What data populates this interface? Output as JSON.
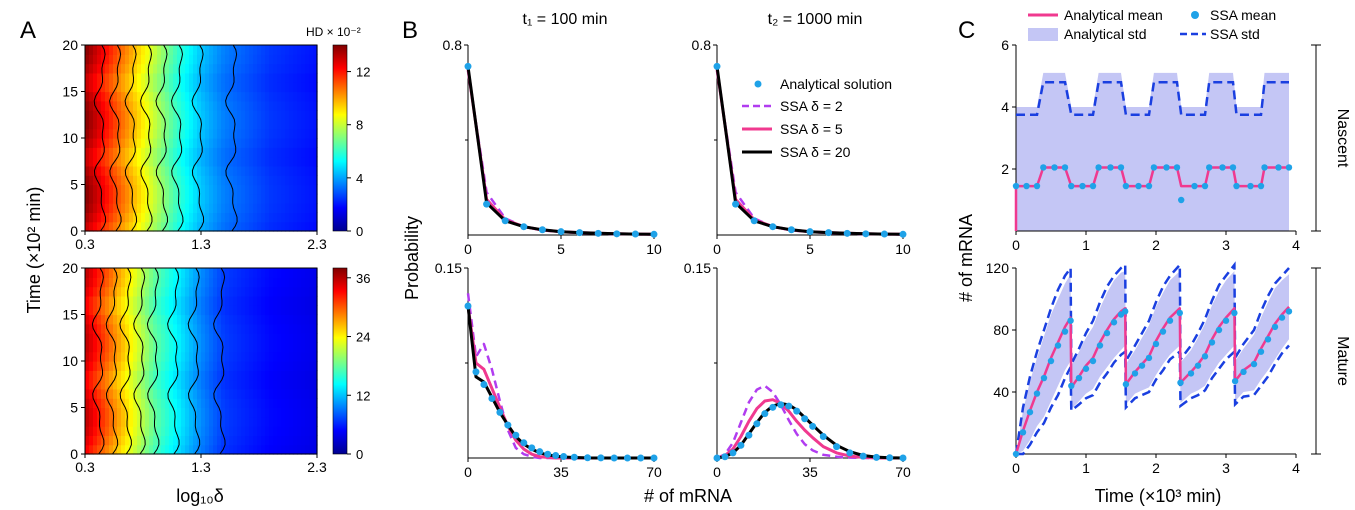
{
  "panel_labels": {
    "a": "A",
    "b": "B",
    "c": "C"
  },
  "chart_data": [
    {
      "id": "A-top",
      "type": "heatmap",
      "title": "",
      "xlabel": "log₁₀δ",
      "ylabel": "Time (×10² min)",
      "xlim": [
        0.3,
        2.3
      ],
      "ylim": [
        0,
        20
      ],
      "xticks": [
        "0.3",
        "1.3",
        "2.3"
      ],
      "yticks": [
        "0",
        "5",
        "10",
        "15",
        "20"
      ],
      "colorbar": {
        "label": "HD × 10⁻²",
        "min": 0,
        "max": 14,
        "ticks": [
          "0",
          "4",
          "8",
          "12"
        ]
      },
      "hd_at_log_delta": {
        "x": [
          0.3,
          0.5,
          0.7,
          0.9,
          1.1,
          1.3,
          1.5,
          1.9,
          2.3
        ],
        "values": [
          14,
          12,
          10,
          8,
          6,
          4.5,
          3.5,
          2.5,
          2
        ]
      }
    },
    {
      "id": "A-bottom",
      "type": "heatmap",
      "title": "",
      "xlabel": "log₁₀δ",
      "ylabel": "Time (×10² min)",
      "xlim": [
        0.3,
        2.3
      ],
      "ylim": [
        0,
        20
      ],
      "xticks": [
        "0.3",
        "1.3",
        "2.3"
      ],
      "yticks": [
        "0",
        "5",
        "10",
        "15",
        "20"
      ],
      "colorbar": {
        "label": "",
        "min": 0,
        "max": 38,
        "ticks": [
          "0",
          "12",
          "24",
          "36"
        ]
      },
      "hd_at_log_delta": {
        "x": [
          0.3,
          0.5,
          0.7,
          0.9,
          1.1,
          1.3,
          1.5,
          1.9,
          2.3
        ],
        "values": [
          36,
          30,
          24,
          18,
          14,
          10,
          7,
          5,
          4
        ]
      }
    },
    {
      "id": "B-nascent-t1",
      "type": "line",
      "title": "t₁ = 100 min",
      "xlabel": "# of mRNA",
      "ylabel": "Probability",
      "xlim": [
        0,
        10
      ],
      "ylim": [
        0,
        0.8
      ],
      "xticks": [
        "0",
        "5",
        "10"
      ],
      "yticks": [
        "0.8"
      ],
      "x": [
        0,
        1,
        2,
        3,
        4,
        5,
        6,
        7,
        8,
        9,
        10
      ],
      "series": [
        {
          "name": "Analytical solution",
          "values": [
            0.71,
            0.13,
            0.06,
            0.035,
            0.022,
            0.014,
            0.01,
            0.007,
            0.005,
            0.004,
            0.003
          ]
        },
        {
          "name": "SSA δ = 2",
          "values": [
            0.69,
            0.18,
            0.07,
            0.035,
            0.02,
            0.013,
            0.009,
            0.006,
            0.004,
            0.003,
            0.002
          ]
        },
        {
          "name": "SSA δ = 5",
          "values": [
            0.7,
            0.15,
            0.065,
            0.035,
            0.021,
            0.014,
            0.01,
            0.007,
            0.005,
            0.004,
            0.003
          ]
        },
        {
          "name": "SSA δ = 20",
          "values": [
            0.71,
            0.135,
            0.06,
            0.035,
            0.022,
            0.014,
            0.01,
            0.007,
            0.005,
            0.004,
            0.003
          ]
        }
      ]
    },
    {
      "id": "B-nascent-t2",
      "type": "line",
      "title": "t₂ = 1000 min",
      "xlabel": "# of mRNA",
      "ylabel": "",
      "xlim": [
        0,
        10
      ],
      "ylim": [
        0,
        0.8
      ],
      "xticks": [
        "0",
        "5",
        "10"
      ],
      "yticks": [
        "0.8"
      ],
      "x": [
        0,
        1,
        2,
        3,
        4,
        5,
        6,
        7,
        8,
        9,
        10
      ],
      "series": [
        {
          "name": "Analytical solution",
          "values": [
            0.71,
            0.13,
            0.06,
            0.035,
            0.022,
            0.014,
            0.01,
            0.007,
            0.005,
            0.004,
            0.003
          ]
        },
        {
          "name": "SSA δ = 2",
          "values": [
            0.69,
            0.18,
            0.07,
            0.035,
            0.02,
            0.013,
            0.009,
            0.006,
            0.004,
            0.003,
            0.002
          ]
        },
        {
          "name": "SSA δ = 5",
          "values": [
            0.7,
            0.15,
            0.065,
            0.035,
            0.021,
            0.014,
            0.01,
            0.007,
            0.005,
            0.004,
            0.003
          ]
        },
        {
          "name": "SSA δ = 20",
          "values": [
            0.71,
            0.135,
            0.06,
            0.035,
            0.022,
            0.014,
            0.01,
            0.007,
            0.005,
            0.004,
            0.003
          ]
        }
      ]
    },
    {
      "id": "B-mature-t1",
      "type": "line",
      "title": "",
      "xlabel": "# of mRNA",
      "ylabel": "Probability",
      "xlim": [
        0,
        70
      ],
      "ylim": [
        0,
        0.15
      ],
      "xticks": [
        "0",
        "35",
        "70"
      ],
      "yticks": [
        "0.15"
      ],
      "x": [
        0,
        3,
        6,
        9,
        12,
        15,
        18,
        21,
        24,
        27,
        30,
        33,
        36,
        40,
        45,
        50,
        55,
        60,
        65,
        70
      ],
      "series": [
        {
          "name": "Analytical solution",
          "values": [
            0.12,
            0.068,
            0.058,
            0.047,
            0.036,
            0.026,
            0.018,
            0.012,
            0.008,
            0.005,
            0.003,
            0.002,
            0.0012,
            0.0006,
            0.0002,
            0.0001,
            0,
            0,
            0,
            0
          ]
        },
        {
          "name": "SSA δ = 2",
          "values": [
            0.13,
            0.08,
            0.09,
            0.07,
            0.045,
            0.022,
            0.008,
            0.003,
            0.001,
            0,
            0,
            0,
            0,
            0,
            0,
            0,
            0,
            0,
            0,
            0
          ]
        },
        {
          "name": "SSA δ = 5",
          "values": [
            0.12,
            0.075,
            0.07,
            0.055,
            0.04,
            0.025,
            0.014,
            0.007,
            0.003,
            0.001,
            0.0005,
            0,
            0,
            0,
            0,
            0,
            0,
            0,
            0,
            0
          ]
        },
        {
          "name": "SSA δ = 20",
          "values": [
            0.12,
            0.064,
            0.06,
            0.048,
            0.036,
            0.026,
            0.017,
            0.011,
            0.007,
            0.004,
            0.0025,
            0.0015,
            0.0008,
            0.0004,
            0.0001,
            0,
            0,
            0,
            0,
            0
          ]
        }
      ]
    },
    {
      "id": "B-mature-t2",
      "type": "line",
      "title": "",
      "xlabel": "# of mRNA",
      "ylabel": "",
      "xlim": [
        0,
        70
      ],
      "ylim": [
        0,
        0.15
      ],
      "xticks": [
        "0",
        "35",
        "70"
      ],
      "yticks": [
        "0.15"
      ],
      "x": [
        0,
        3,
        6,
        9,
        12,
        15,
        18,
        21,
        24,
        27,
        30,
        33,
        36,
        40,
        45,
        50,
        55,
        60,
        65,
        70
      ],
      "series": [
        {
          "name": "Analytical solution",
          "values": [
            0,
            0.001,
            0.004,
            0.01,
            0.018,
            0.027,
            0.035,
            0.04,
            0.042,
            0.041,
            0.037,
            0.031,
            0.025,
            0.017,
            0.009,
            0.004,
            0.0015,
            0.0005,
            0.0002,
            0
          ]
        },
        {
          "name": "SSA δ = 2",
          "values": [
            0,
            0.003,
            0.012,
            0.028,
            0.044,
            0.054,
            0.057,
            0.052,
            0.042,
            0.03,
            0.019,
            0.011,
            0.006,
            0.0025,
            0.001,
            0.0003,
            0,
            0,
            0,
            0
          ]
        },
        {
          "name": "SSA δ = 5",
          "values": [
            0,
            0.002,
            0.007,
            0.017,
            0.029,
            0.039,
            0.045,
            0.046,
            0.043,
            0.037,
            0.029,
            0.022,
            0.016,
            0.009,
            0.004,
            0.0015,
            0.0005,
            0,
            0,
            0
          ]
        },
        {
          "name": "SSA δ = 20",
          "values": [
            0,
            0.001,
            0.004,
            0.01,
            0.019,
            0.028,
            0.036,
            0.041,
            0.043,
            0.042,
            0.038,
            0.032,
            0.026,
            0.018,
            0.01,
            0.005,
            0.002,
            0.0007,
            0.0002,
            0
          ]
        }
      ]
    },
    {
      "id": "C-nascent",
      "type": "line",
      "title": "",
      "xlabel": "Time (×10³ min)",
      "ylabel": "# of mRNA",
      "side_label": "Nascent",
      "xlim": [
        0,
        4
      ],
      "ylim": [
        0,
        6
      ],
      "xticks": [
        "0",
        "1",
        "2",
        "3",
        "4"
      ],
      "yticks": [
        "2",
        "4",
        "6"
      ],
      "x": [
        0,
        0.15,
        0.3,
        0.39,
        0.55,
        0.7,
        0.79,
        0.95,
        1.1,
        1.18,
        1.35,
        1.5,
        1.57,
        1.75,
        1.9,
        1.97,
        2.15,
        2.3,
        2.36,
        2.55,
        2.7,
        2.76,
        2.95,
        3.1,
        3.15,
        3.35,
        3.5,
        3.55,
        3.75,
        3.9
      ],
      "series": [
        {
          "name": "Analytical mean",
          "values": [
            1.45,
            1.45,
            1.45,
            2.05,
            2.05,
            2.05,
            1.45,
            1.45,
            1.45,
            2.05,
            2.05,
            2.05,
            1.45,
            1.45,
            1.45,
            2.05,
            2.05,
            2.05,
            1.45,
            1.45,
            1.45,
            2.05,
            2.05,
            2.05,
            1.45,
            1.45,
            1.45,
            2.05,
            2.05,
            2.05
          ]
        },
        {
          "name": "SSA mean",
          "values": [
            1.45,
            1.45,
            1.45,
            2.05,
            2.05,
            2.05,
            1.45,
            1.45,
            1.45,
            2.05,
            2.05,
            2.05,
            1.45,
            1.45,
            1.45,
            2.05,
            2.05,
            2.05,
            1.0,
            1.45,
            1.45,
            2.05,
            2.05,
            2.05,
            1.45,
            1.45,
            1.45,
            2.05,
            2.05,
            2.05
          ]
        },
        {
          "name": "SSA std",
          "values": [
            3.75,
            3.75,
            3.75,
            4.8,
            4.8,
            4.8,
            3.75,
            3.75,
            3.75,
            4.8,
            4.8,
            4.8,
            3.75,
            3.75,
            3.75,
            4.8,
            4.8,
            4.8,
            3.75,
            3.75,
            3.75,
            4.8,
            4.8,
            4.8,
            3.75,
            3.75,
            3.75,
            4.8,
            4.8,
            4.8
          ]
        },
        {
          "name": "Analytical std",
          "values": [
            4.0,
            4.0,
            4.0,
            5.1,
            5.1,
            5.1,
            4.0,
            4.0,
            4.0,
            5.1,
            5.1,
            5.1,
            4.0,
            4.0,
            4.0,
            5.1,
            5.1,
            5.1,
            4.0,
            4.0,
            4.0,
            5.1,
            5.1,
            5.1,
            4.0,
            4.0,
            4.0,
            5.1,
            5.1,
            5.1
          ]
        }
      ]
    },
    {
      "id": "C-mature",
      "type": "line",
      "title": "",
      "xlabel": "Time (×10³ min)",
      "ylabel": "# of mRNA",
      "side_label": "Mature",
      "xlim": [
        0,
        4
      ],
      "ylim": [
        0,
        120
      ],
      "xticks": [
        "0",
        "1",
        "2",
        "3",
        "4"
      ],
      "yticks": [
        "40",
        "80",
        "120"
      ],
      "x": [
        0,
        0.1,
        0.2,
        0.3,
        0.4,
        0.5,
        0.6,
        0.7,
        0.78,
        0.79,
        0.9,
        1.0,
        1.1,
        1.2,
        1.3,
        1.4,
        1.5,
        1.56,
        1.57,
        1.7,
        1.8,
        1.9,
        2.0,
        2.1,
        2.2,
        2.34,
        2.35,
        2.5,
        2.6,
        2.7,
        2.8,
        2.9,
        3.0,
        3.12,
        3.13,
        3.25,
        3.4,
        3.5,
        3.6,
        3.7,
        3.8,
        3.9
      ],
      "series": [
        {
          "name": "Analytical mean",
          "values": [
            0,
            15,
            28,
            40,
            50,
            62,
            72,
            82,
            88,
            43,
            50,
            57,
            62,
            72,
            80,
            87,
            92,
            94,
            45,
            53,
            58,
            63,
            73,
            81,
            88,
            94,
            46,
            53,
            58,
            64,
            74,
            82,
            88,
            94,
            47,
            54,
            59,
            68,
            76,
            84,
            90,
            95
          ]
        },
        {
          "name": "SSA mean",
          "values": [
            0,
            14,
            27,
            39,
            49,
            60,
            70,
            79,
            86,
            44,
            49,
            55,
            60,
            70,
            78,
            85,
            90,
            92,
            45,
            52,
            57,
            62,
            71,
            79,
            86,
            91,
            46,
            52,
            57,
            63,
            72,
            80,
            86,
            91,
            47,
            53,
            58,
            66,
            74,
            82,
            88,
            92
          ]
        },
        {
          "name": "SSA std",
          "values": [
            0,
            30,
            50,
            66,
            80,
            94,
            106,
            115,
            120,
            58,
            68,
            78,
            86,
            98,
            108,
            115,
            120,
            122,
            60,
            70,
            78,
            86,
            98,
            108,
            115,
            122,
            61,
            70,
            78,
            87,
            99,
            109,
            115,
            122,
            62,
            71,
            80,
            92,
            102,
            110,
            115,
            120
          ]
        },
        {
          "name": "Analytical std",
          "values": [
            0,
            28,
            47,
            62,
            76,
            90,
            100,
            110,
            116,
            57,
            66,
            75,
            82,
            94,
            104,
            112,
            117,
            118,
            58,
            67,
            75,
            83,
            95,
            104,
            112,
            118,
            59,
            67,
            75,
            84,
            96,
            105,
            112,
            118,
            60,
            68,
            77,
            88,
            98,
            107,
            112,
            116
          ]
        }
      ]
    }
  ]
}
